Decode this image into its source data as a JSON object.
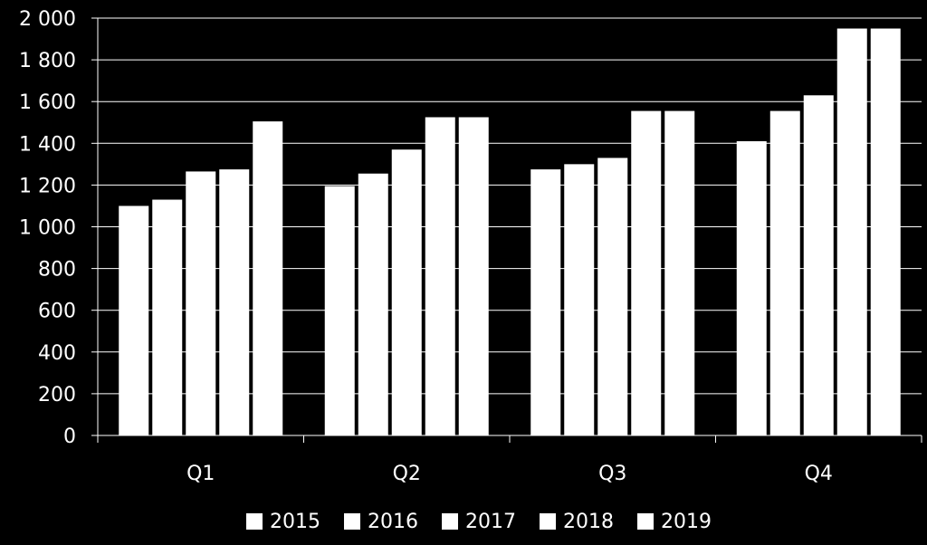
{
  "chart_data": {
    "type": "bar",
    "categories": [
      "Q1",
      "Q2",
      "Q3",
      "Q4"
    ],
    "series": [
      {
        "name": "2015",
        "values": [
          1100,
          1195,
          1275,
          1410
        ]
      },
      {
        "name": "2016",
        "values": [
          1130,
          1255,
          1300,
          1555
        ]
      },
      {
        "name": "2017",
        "values": [
          1265,
          1370,
          1330,
          1630
        ]
      },
      {
        "name": "2018",
        "values": [
          1275,
          1525,
          1555,
          1950
        ]
      },
      {
        "name": "2019",
        "values": [
          1505,
          1525,
          1555,
          1950
        ]
      }
    ],
    "yticks": [
      "0",
      "200",
      "400",
      "600",
      "800",
      "1 000",
      "1 200",
      "1 400",
      "1 600",
      "1 800",
      "2 000"
    ],
    "ylim": [
      0,
      2000
    ],
    "grid": true,
    "legend_position": "bottom",
    "colors": {
      "background": "#000000",
      "bar": "#ffffff",
      "grid": "#ffffff",
      "text": "#ffffff"
    }
  }
}
